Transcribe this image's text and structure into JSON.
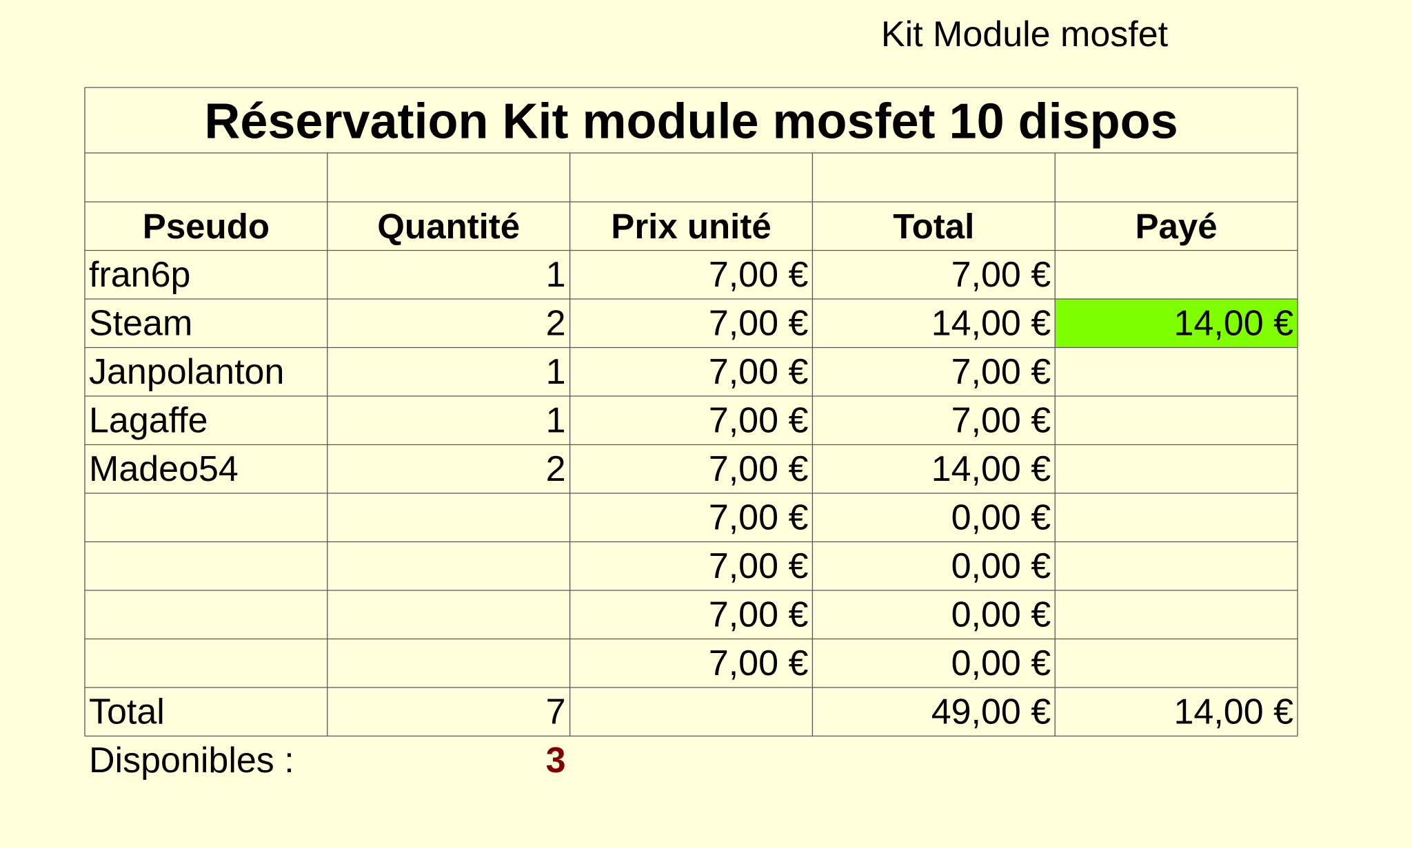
{
  "header": {
    "title": "Kit Module mosfet"
  },
  "table": {
    "title": "Réservation Kit module mosfet 10 dispos",
    "columns": [
      "Pseudo",
      "Quantité",
      "Prix unité",
      "Total",
      "Payé"
    ],
    "rows": [
      [
        "fran6p",
        "1",
        "7,00 €",
        "7,00 €",
        null
      ],
      [
        "Steam",
        "2",
        "7,00 €",
        "14,00 €",
        "14,00 €"
      ],
      [
        "Janpolanton",
        "1",
        "7,00 €",
        "7,00 €",
        null
      ],
      [
        "Lagaffe",
        "1",
        "7,00 €",
        "7,00 €",
        null
      ],
      [
        "Madeo54",
        "2",
        "7,00 €",
        "14,00 €",
        null
      ],
      [
        null,
        null,
        "7,00 €",
        "0,00 €",
        null
      ],
      [
        null,
        null,
        "7,00 €",
        "0,00 €",
        null
      ],
      [
        null,
        null,
        "7,00 €",
        "0,00 €",
        null
      ],
      [
        null,
        null,
        "7,00 €",
        "0,00 €",
        null
      ]
    ],
    "total_row": [
      "Total",
      "7",
      null,
      "49,00 €",
      "14,00 €"
    ],
    "highlight": {
      "row": 1,
      "column": 4,
      "color": "#80ff00"
    }
  },
  "available": {
    "label": "Disponibles :",
    "value": "3",
    "color": "#800000"
  }
}
